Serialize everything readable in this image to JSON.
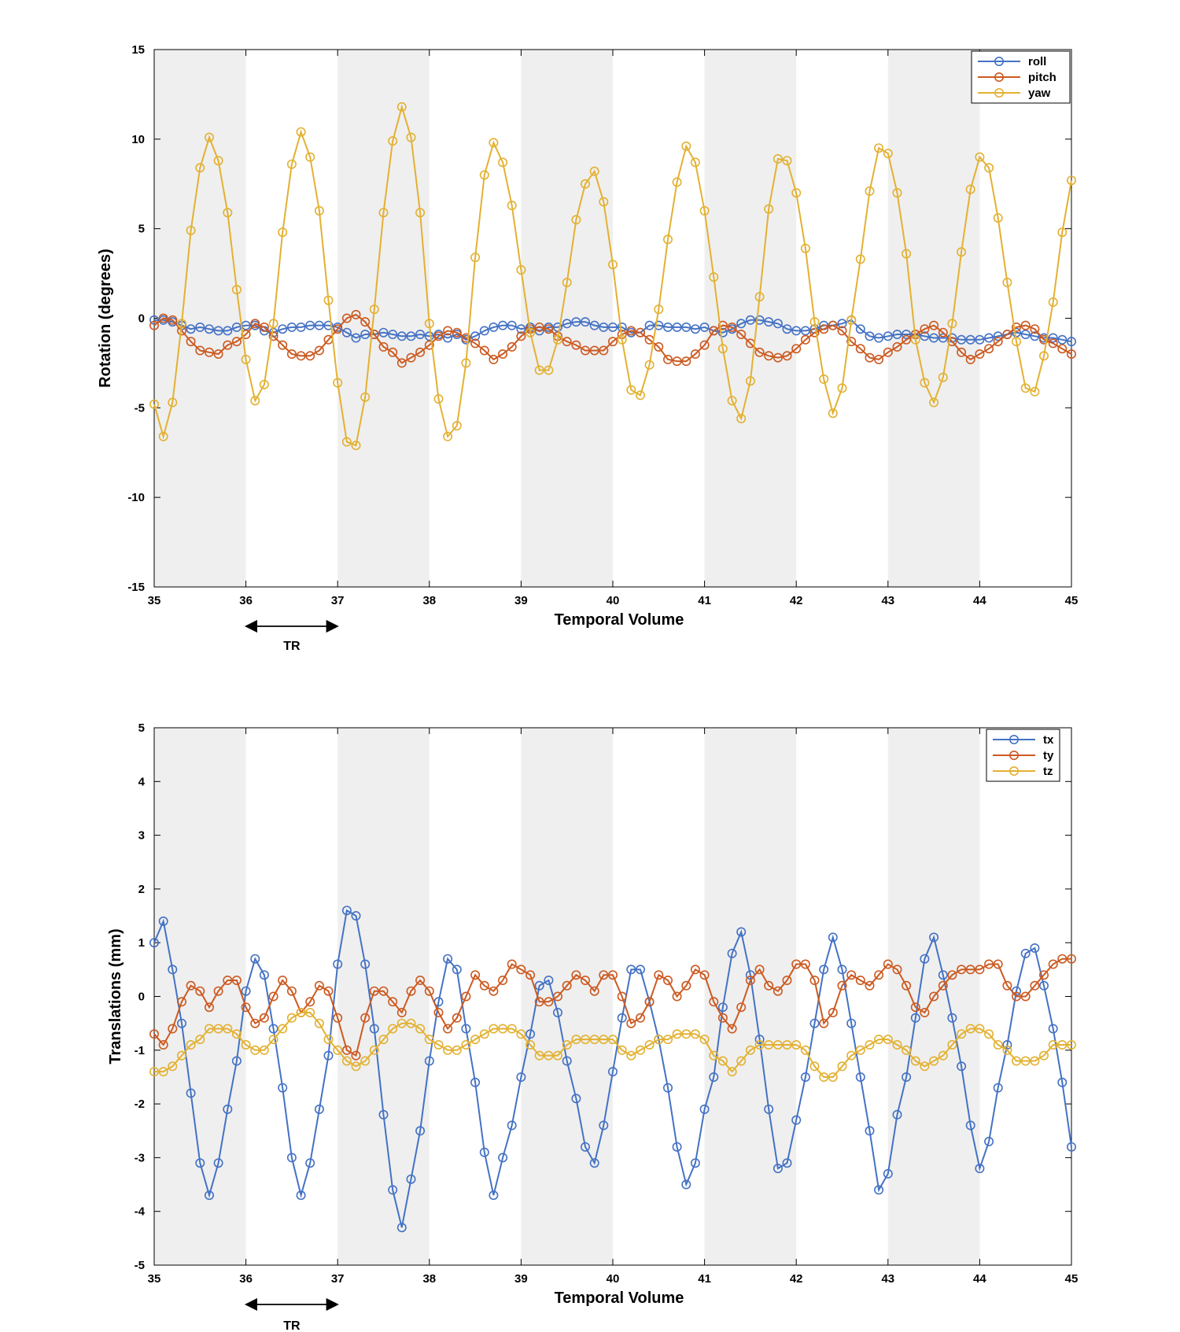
{
  "colors": {
    "blue": "#4472c4",
    "red": "#cc5a21",
    "yellow": "#e3b132",
    "shade": "#efefef"
  },
  "tr_label": "TR",
  "chart_data": [
    {
      "type": "line",
      "xlabel": "Temporal Volume",
      "ylabel": "Rotation (degrees)",
      "xlim": [
        35,
        45
      ],
      "ylim": [
        -15,
        15
      ],
      "xticks": [
        35,
        36,
        37,
        38,
        39,
        40,
        41,
        42,
        43,
        44,
        45
      ],
      "yticks": [
        -15,
        -10,
        -5,
        0,
        5,
        10,
        15
      ],
      "shaded_intervals": [
        [
          35,
          36
        ],
        [
          37,
          38
        ],
        [
          39,
          40
        ],
        [
          41,
          42
        ],
        [
          43,
          44
        ]
      ],
      "legend_position": "top-right",
      "x_start": 35,
      "x_step": 0.1,
      "series": [
        {
          "name": "roll",
          "color": "#4472c4",
          "values": [
            -0.1,
            -0.1,
            -0.2,
            -0.4,
            -0.6,
            -0.5,
            -0.6,
            -0.7,
            -0.7,
            -0.5,
            -0.4,
            -0.4,
            -0.7,
            -0.8,
            -0.6,
            -0.5,
            -0.5,
            -0.4,
            -0.4,
            -0.4,
            -0.5,
            -0.8,
            -1.1,
            -0.9,
            -0.9,
            -0.8,
            -0.9,
            -1.0,
            -1.0,
            -0.9,
            -1.0,
            -0.9,
            -1.1,
            -0.9,
            -1.2,
            -1.0,
            -0.7,
            -0.5,
            -0.4,
            -0.4,
            -0.6,
            -0.5,
            -0.7,
            -0.5,
            -0.5,
            -0.3,
            -0.2,
            -0.2,
            -0.4,
            -0.5,
            -0.5,
            -0.5,
            -0.8,
            -0.8,
            -0.4,
            -0.4,
            -0.5,
            -0.5,
            -0.5,
            -0.6,
            -0.5,
            -0.7,
            -0.8,
            -0.6,
            -0.3,
            -0.1,
            -0.1,
            -0.2,
            -0.3,
            -0.6,
            -0.7,
            -0.7,
            -0.6,
            -0.4,
            -0.4,
            -0.3,
            -0.1,
            -0.6,
            -1.0,
            -1.1,
            -1.0,
            -0.9,
            -0.9,
            -0.9,
            -1.0,
            -1.1,
            -1.1,
            -1.1,
            -1.2,
            -1.2,
            -1.2,
            -1.1,
            -1.0,
            -0.9,
            -0.8,
            -0.9,
            -1.0,
            -1.1,
            -1.1,
            -1.2,
            -1.3
          ]
        },
        {
          "name": "pitch",
          "color": "#cc5a21",
          "values": [
            -0.4,
            0.0,
            -0.1,
            -0.7,
            -1.3,
            -1.8,
            -1.9,
            -2.0,
            -1.5,
            -1.3,
            -0.9,
            -0.3,
            -0.5,
            -1.0,
            -1.5,
            -2.0,
            -2.1,
            -2.1,
            -1.8,
            -1.2,
            -0.6,
            0.0,
            0.2,
            -0.2,
            -0.9,
            -1.6,
            -1.9,
            -2.5,
            -2.2,
            -1.9,
            -1.5,
            -1.0,
            -0.7,
            -0.8,
            -1.1,
            -1.4,
            -1.8,
            -2.3,
            -2.0,
            -1.6,
            -1.0,
            -0.6,
            -0.5,
            -0.6,
            -1.0,
            -1.3,
            -1.5,
            -1.8,
            -1.8,
            -1.8,
            -1.3,
            -0.9,
            -0.7,
            -0.8,
            -1.2,
            -1.6,
            -2.3,
            -2.4,
            -2.4,
            -2.0,
            -1.5,
            -0.7,
            -0.4,
            -0.5,
            -0.9,
            -1.4,
            -1.9,
            -2.1,
            -2.2,
            -2.1,
            -1.7,
            -1.2,
            -0.8,
            -0.6,
            -0.4,
            -0.7,
            -1.3,
            -1.7,
            -2.2,
            -2.3,
            -1.9,
            -1.6,
            -1.2,
            -0.9,
            -0.6,
            -0.4,
            -0.8,
            -1.3,
            -1.9,
            -2.3,
            -2.0,
            -1.7,
            -1.3,
            -0.9,
            -0.5,
            -0.4,
            -0.6,
            -1.2,
            -1.4,
            -1.7,
            -2.0
          ]
        },
        {
          "name": "yaw",
          "color": "#e3b132",
          "values": [
            -4.8,
            -6.6,
            -4.7,
            -0.3,
            4.9,
            8.4,
            10.1,
            8.8,
            5.9,
            1.6,
            -2.3,
            -4.6,
            -3.7,
            -0.3,
            4.8,
            8.6,
            10.4,
            9.0,
            6.0,
            1.0,
            -3.6,
            -6.9,
            -7.1,
            -4.4,
            0.5,
            5.9,
            9.9,
            11.8,
            10.1,
            5.9,
            -0.3,
            -4.5,
            -6.6,
            -6.0,
            -2.5,
            3.4,
            8.0,
            9.8,
            8.7,
            6.3,
            2.7,
            -0.8,
            -2.9,
            -2.9,
            -1.2,
            2.0,
            5.5,
            7.5,
            8.2,
            6.5,
            3.0,
            -1.2,
            -4.0,
            -4.3,
            -2.6,
            0.5,
            4.4,
            7.6,
            9.6,
            8.7,
            6.0,
            2.3,
            -1.7,
            -4.6,
            -5.6,
            -3.5,
            1.2,
            6.1,
            8.9,
            8.8,
            7.0,
            3.9,
            -0.2,
            -3.4,
            -5.3,
            -3.9,
            -0.1,
            3.3,
            7.1,
            9.5,
            9.2,
            7.0,
            3.6,
            -1.2,
            -3.6,
            -4.7,
            -3.3,
            -0.3,
            3.7,
            7.2,
            9.0,
            8.4,
            5.6,
            2.0,
            -1.3,
            -3.9,
            -4.1,
            -2.1,
            0.9,
            4.8,
            7.7
          ]
        }
      ]
    },
    {
      "type": "line",
      "xlabel": "Temporal Volume",
      "ylabel": "Translations (mm)",
      "xlim": [
        35,
        45
      ],
      "ylim": [
        -5,
        5
      ],
      "xticks": [
        35,
        36,
        37,
        38,
        39,
        40,
        41,
        42,
        43,
        44,
        45
      ],
      "yticks": [
        -5,
        -4,
        -3,
        -2,
        -1,
        0,
        1,
        2,
        3,
        4,
        5
      ],
      "shaded_intervals": [
        [
          35,
          36
        ],
        [
          37,
          38
        ],
        [
          39,
          40
        ],
        [
          41,
          42
        ],
        [
          43,
          44
        ]
      ],
      "legend_position": "top-right",
      "x_start": 35,
      "x_step": 0.1,
      "series": [
        {
          "name": "tx",
          "color": "#4472c4",
          "values": [
            1.0,
            1.4,
            0.5,
            -0.5,
            -1.8,
            -3.1,
            -3.7,
            -3.1,
            -2.1,
            -1.2,
            0.1,
            0.7,
            0.4,
            -0.6,
            -1.7,
            -3.0,
            -3.7,
            -3.1,
            -2.1,
            -1.1,
            0.6,
            1.6,
            1.5,
            0.6,
            -0.6,
            -2.2,
            -3.6,
            -4.3,
            -3.4,
            -2.5,
            -1.2,
            -0.1,
            0.7,
            0.5,
            -0.6,
            -1.6,
            -2.9,
            -3.7,
            -3.0,
            -2.4,
            -1.5,
            -0.7,
            0.2,
            0.3,
            -0.3,
            -1.2,
            -1.9,
            -2.8,
            -3.1,
            -2.4,
            -1.4,
            -0.4,
            0.5,
            0.5,
            -0.1,
            -0.8,
            -1.7,
            -2.8,
            -3.5,
            -3.1,
            -2.1,
            -1.5,
            -0.2,
            0.8,
            1.2,
            0.4,
            -0.8,
            -2.1,
            -3.2,
            -3.1,
            -2.3,
            -1.5,
            -0.5,
            0.5,
            1.1,
            0.5,
            -0.5,
            -1.5,
            -2.5,
            -3.6,
            -3.3,
            -2.2,
            -1.5,
            -0.4,
            0.7,
            1.1,
            0.4,
            -0.4,
            -1.3,
            -2.4,
            -3.2,
            -2.7,
            -1.7,
            -0.9,
            0.1,
            0.8,
            0.9,
            0.2,
            -0.6,
            -1.6,
            -2.8
          ]
        },
        {
          "name": "ty",
          "color": "#cc5a21",
          "values": [
            -0.7,
            -0.9,
            -0.6,
            -0.1,
            0.2,
            0.1,
            -0.2,
            0.1,
            0.3,
            0.3,
            -0.2,
            -0.5,
            -0.4,
            0.0,
            0.3,
            0.1,
            -0.3,
            -0.1,
            0.2,
            0.1,
            -0.4,
            -1.0,
            -1.1,
            -0.4,
            0.1,
            0.1,
            -0.1,
            -0.3,
            0.1,
            0.3,
            0.1,
            -0.3,
            -0.6,
            -0.4,
            0.0,
            0.4,
            0.2,
            0.1,
            0.3,
            0.6,
            0.5,
            0.4,
            -0.1,
            -0.1,
            0.0,
            0.2,
            0.4,
            0.3,
            0.1,
            0.4,
            0.4,
            0.0,
            -0.5,
            -0.4,
            -0.1,
            0.4,
            0.3,
            0.0,
            0.2,
            0.5,
            0.4,
            -0.1,
            -0.4,
            -0.6,
            -0.2,
            0.3,
            0.5,
            0.2,
            0.1,
            0.3,
            0.6,
            0.6,
            0.3,
            -0.5,
            -0.3,
            0.2,
            0.4,
            0.3,
            0.2,
            0.4,
            0.6,
            0.5,
            0.2,
            -0.2,
            -0.3,
            0.0,
            0.2,
            0.4,
            0.5,
            0.5,
            0.5,
            0.6,
            0.6,
            0.2,
            0.0,
            0.0,
            0.2,
            0.4,
            0.6,
            0.7,
            0.7
          ]
        },
        {
          "name": "tz",
          "color": "#e3b132",
          "values": [
            -1.4,
            -1.4,
            -1.3,
            -1.1,
            -0.9,
            -0.8,
            -0.6,
            -0.6,
            -0.6,
            -0.7,
            -0.9,
            -1.0,
            -1.0,
            -0.8,
            -0.6,
            -0.4,
            -0.3,
            -0.3,
            -0.5,
            -0.8,
            -1.0,
            -1.2,
            -1.3,
            -1.2,
            -1.0,
            -0.8,
            -0.6,
            -0.5,
            -0.5,
            -0.6,
            -0.8,
            -0.9,
            -1.0,
            -1.0,
            -0.9,
            -0.8,
            -0.7,
            -0.6,
            -0.6,
            -0.6,
            -0.7,
            -0.9,
            -1.1,
            -1.1,
            -1.1,
            -0.9,
            -0.8,
            -0.8,
            -0.8,
            -0.8,
            -0.8,
            -1.0,
            -1.1,
            -1.0,
            -0.9,
            -0.8,
            -0.8,
            -0.7,
            -0.7,
            -0.7,
            -0.8,
            -1.1,
            -1.2,
            -1.4,
            -1.2,
            -1.0,
            -0.9,
            -0.9,
            -0.9,
            -0.9,
            -0.9,
            -1.0,
            -1.3,
            -1.5,
            -1.5,
            -1.3,
            -1.1,
            -1.0,
            -0.9,
            -0.8,
            -0.8,
            -0.9,
            -1.0,
            -1.2,
            -1.3,
            -1.2,
            -1.1,
            -0.9,
            -0.7,
            -0.6,
            -0.6,
            -0.7,
            -0.9,
            -1.0,
            -1.2,
            -1.2,
            -1.2,
            -1.1,
            -0.9,
            -0.9,
            -0.9
          ]
        }
      ]
    }
  ]
}
